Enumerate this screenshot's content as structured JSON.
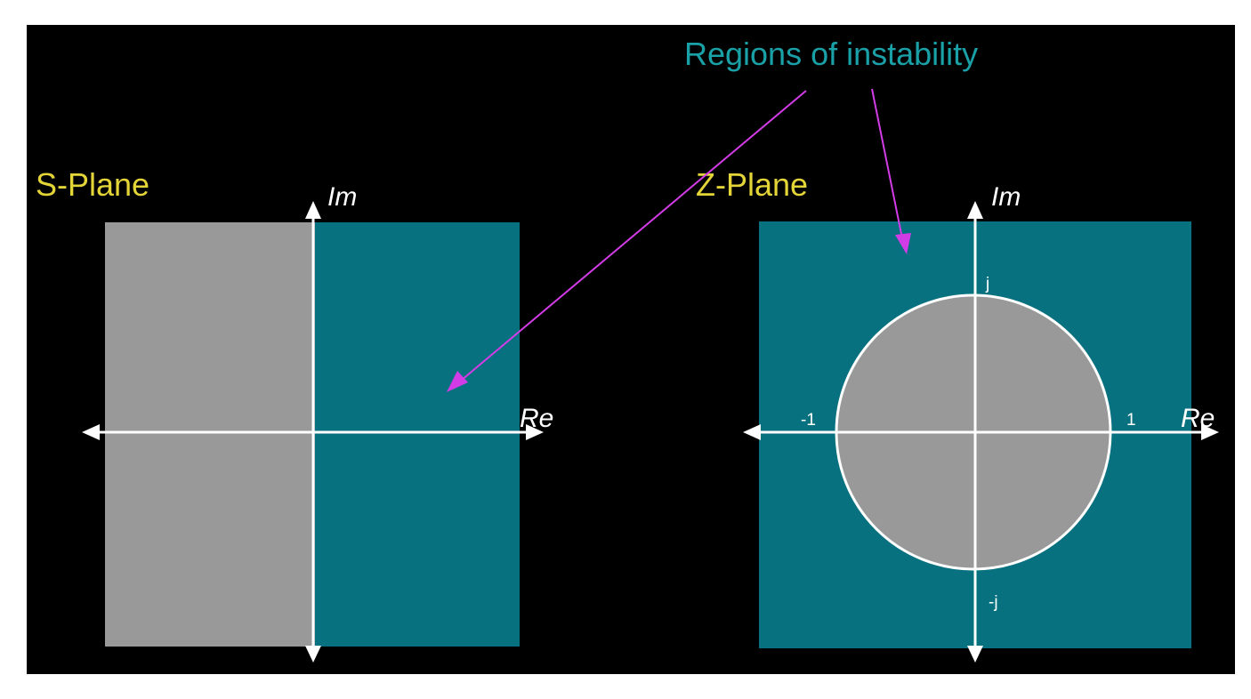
{
  "annotation": {
    "text": "Regions of instability"
  },
  "s_plane": {
    "title": "S-Plane",
    "im_label": "Im",
    "re_label": "Re"
  },
  "z_plane": {
    "title": "Z-Plane",
    "im_label": "Im",
    "re_label": "Re",
    "tick_j": "j",
    "tick_neg_j": "-j",
    "tick_neg_1": "-1",
    "tick_1": "1"
  },
  "colors": {
    "background": "#000000",
    "stable_region": "#999999",
    "unstable_region": "#08717f",
    "axis": "#ffffff",
    "plane_title": "#e3d438",
    "annotation_text": "#1aa1a8",
    "annotation_arrow": "#d23ce6"
  }
}
